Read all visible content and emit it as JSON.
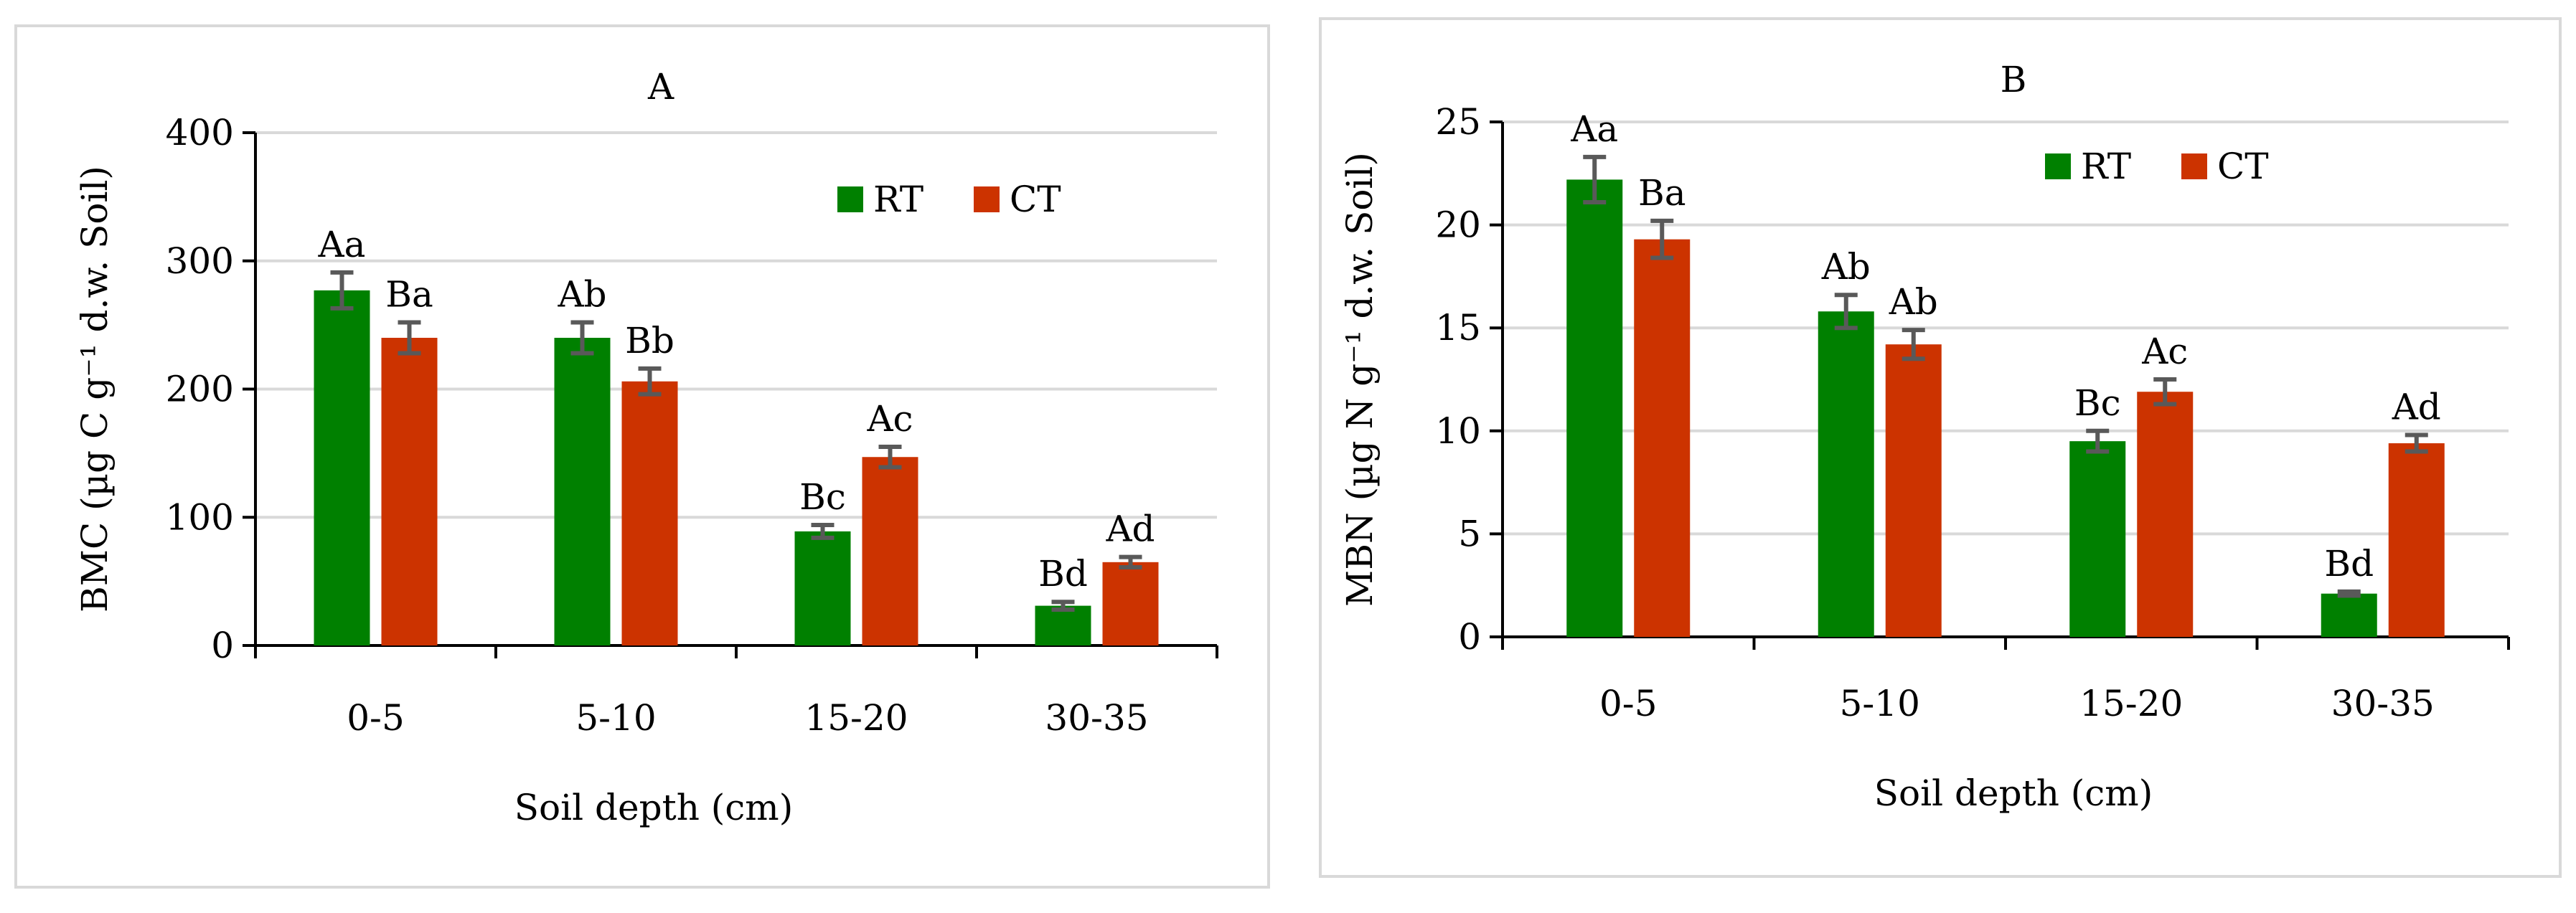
{
  "chart_data": [
    {
      "type": "bar",
      "title": "A",
      "xlabel": "Soil depth (cm)",
      "ylabel": "BMC (µg C g⁻¹ d.w. Soil)",
      "ylim": [
        0,
        400
      ],
      "yticks": [
        "0",
        "100",
        "200",
        "300",
        "400"
      ],
      "categories": [
        "0-5",
        "5-10",
        "15-20",
        "30-35"
      ],
      "legend_position": "top-right",
      "series": [
        {
          "name": "RT",
          "color": "#008000",
          "values": [
            277,
            240,
            89,
            31
          ],
          "errors": [
            14,
            12,
            5,
            3
          ],
          "labels": [
            "Aa",
            "Ab",
            "Bc",
            "Bd"
          ]
        },
        {
          "name": "CT",
          "color": "#cc3300",
          "values": [
            240,
            206,
            147,
            65
          ],
          "errors": [
            12,
            10,
            8,
            4
          ],
          "labels": [
            "Ba",
            "Bb",
            "Ac",
            "Ad"
          ]
        }
      ]
    },
    {
      "type": "bar",
      "title": "B",
      "xlabel": "Soil depth (cm)",
      "ylabel": "MBN (µg N g⁻¹ d.w. Soil)",
      "ylim": [
        0,
        25
      ],
      "yticks": [
        "0",
        "5",
        "10",
        "15",
        "20",
        "25"
      ],
      "categories": [
        "0-5",
        "5-10",
        "15-20",
        "30-35"
      ],
      "legend_position": "top-right",
      "series": [
        {
          "name": "RT",
          "color": "#008000",
          "values": [
            22.2,
            15.8,
            9.5,
            2.1
          ],
          "errors": [
            1.1,
            0.8,
            0.5,
            0.1
          ],
          "labels": [
            "Aa",
            "Ab",
            "Bc",
            "Bd"
          ]
        },
        {
          "name": "CT",
          "color": "#cc3300",
          "values": [
            19.3,
            14.2,
            11.9,
            9.4
          ],
          "errors": [
            0.9,
            0.7,
            0.6,
            0.4
          ],
          "labels": [
            "Ba",
            "Ab",
            "Ac",
            "Ad"
          ]
        }
      ]
    }
  ]
}
